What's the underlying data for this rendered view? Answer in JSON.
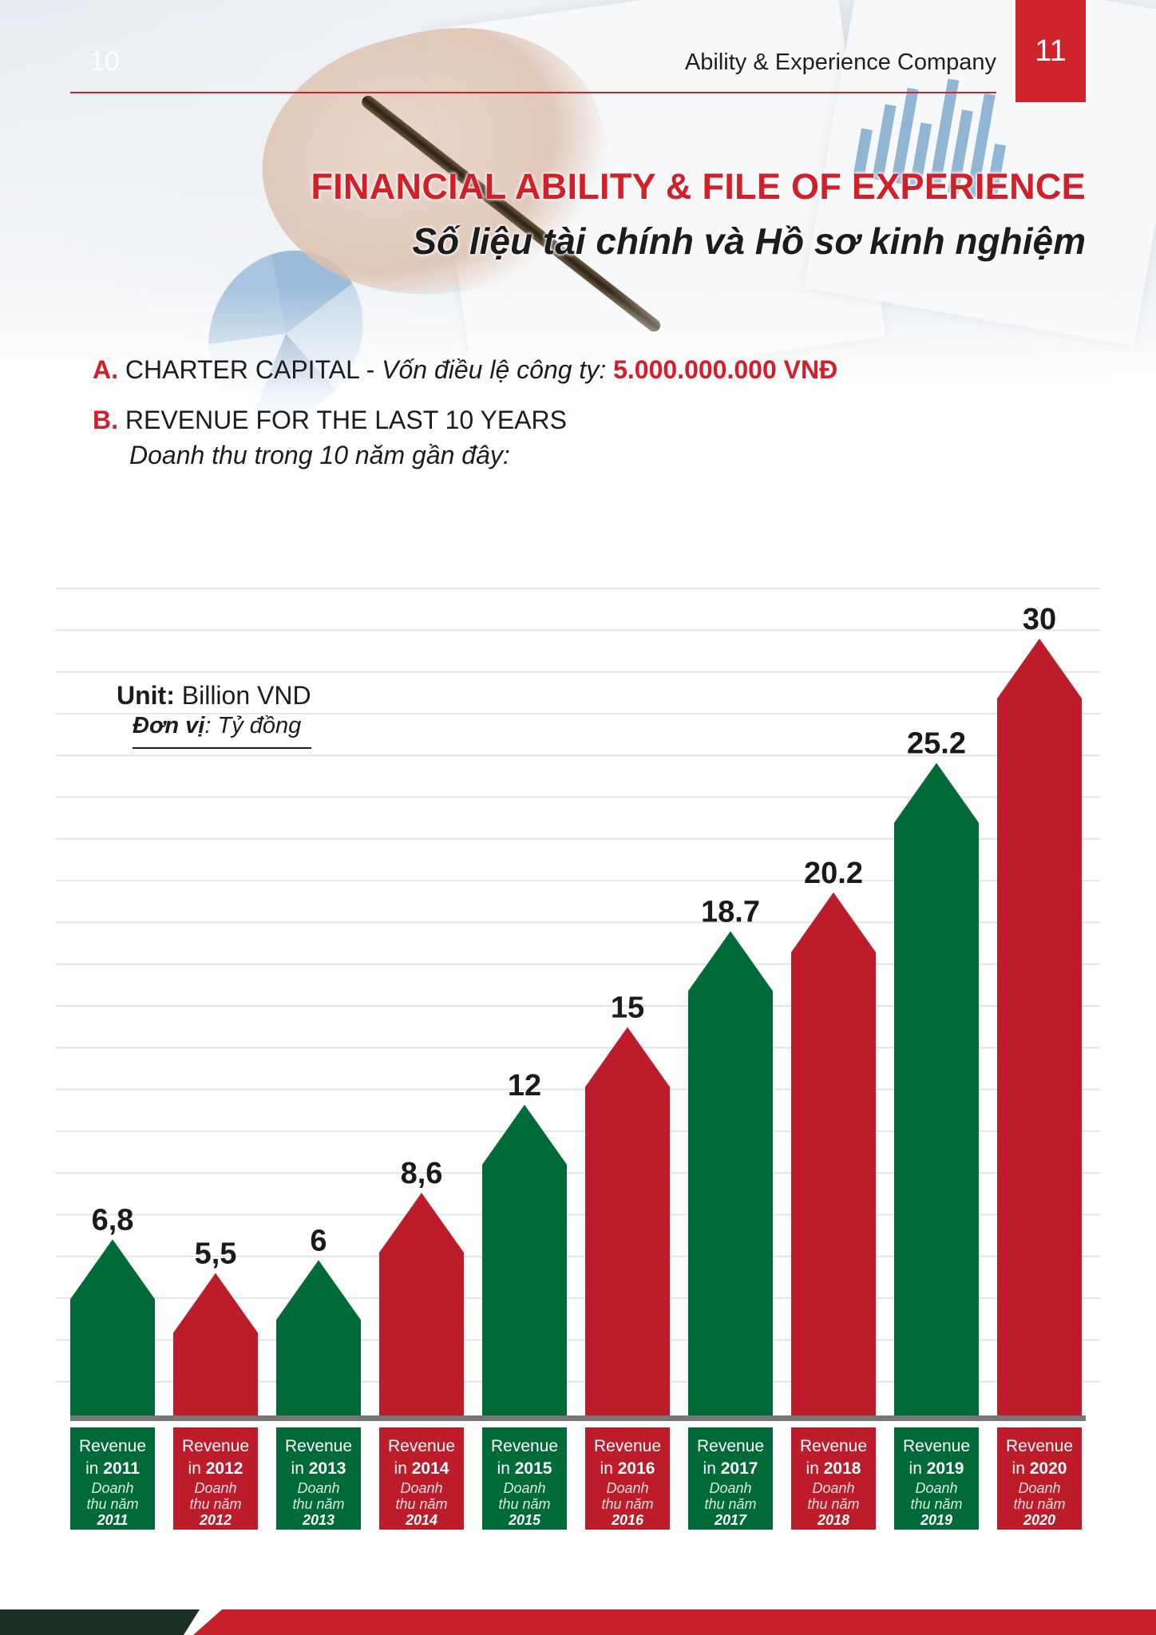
{
  "header": {
    "page_left": "10",
    "company": "Ability & Experience Company",
    "page_right": "11"
  },
  "title": {
    "en": "FINANCIAL ABILITY & FILE OF EXPERIENCE",
    "vi": "Số liệu tài chính và Hồ sơ kinh nghiệm"
  },
  "section_a": {
    "marker": "A.",
    "label": "CHARTER CAPITAL",
    "sep": " - ",
    "vi_label": "Vốn điều lệ công ty:",
    "value": "5.000.000.000 VNĐ"
  },
  "section_b": {
    "marker": "B.",
    "label": "REVENUE FOR THE LAST 10 YEARS",
    "vi_label": "Doanh thu trong 10 năm gần đây:"
  },
  "colors": {
    "red": "#bd1c2b",
    "green": "#006b39",
    "accent": "#d21f29"
  },
  "chart_data": {
    "type": "bar",
    "unit_label": "Unit:",
    "unit_value": "Billion VND",
    "unit_vi_label": "Đơn vị",
    "unit_vi_value": ": Tỷ đồng",
    "ylim": [
      0,
      32
    ],
    "grid": true,
    "categories": [
      "2011",
      "2012",
      "2013",
      "2014",
      "2015",
      "2016",
      "2017",
      "2018",
      "2019",
      "2020"
    ],
    "values": [
      6.8,
      5.5,
      6,
      8.6,
      12,
      15,
      18.7,
      20.2,
      25.2,
      30
    ],
    "value_labels": [
      "6,8",
      "5,5",
      "6",
      "8,6",
      "12",
      "15",
      "18.7",
      "20.2",
      "25.2",
      "30"
    ],
    "bar_colors": [
      "green",
      "red",
      "green",
      "red",
      "green",
      "red",
      "green",
      "red",
      "green",
      "red"
    ],
    "cat_line1": "Revenue",
    "cat_line2_prefix": "in",
    "cat_vi_line1": "Doanh",
    "cat_vi_line2": "thu năm"
  }
}
